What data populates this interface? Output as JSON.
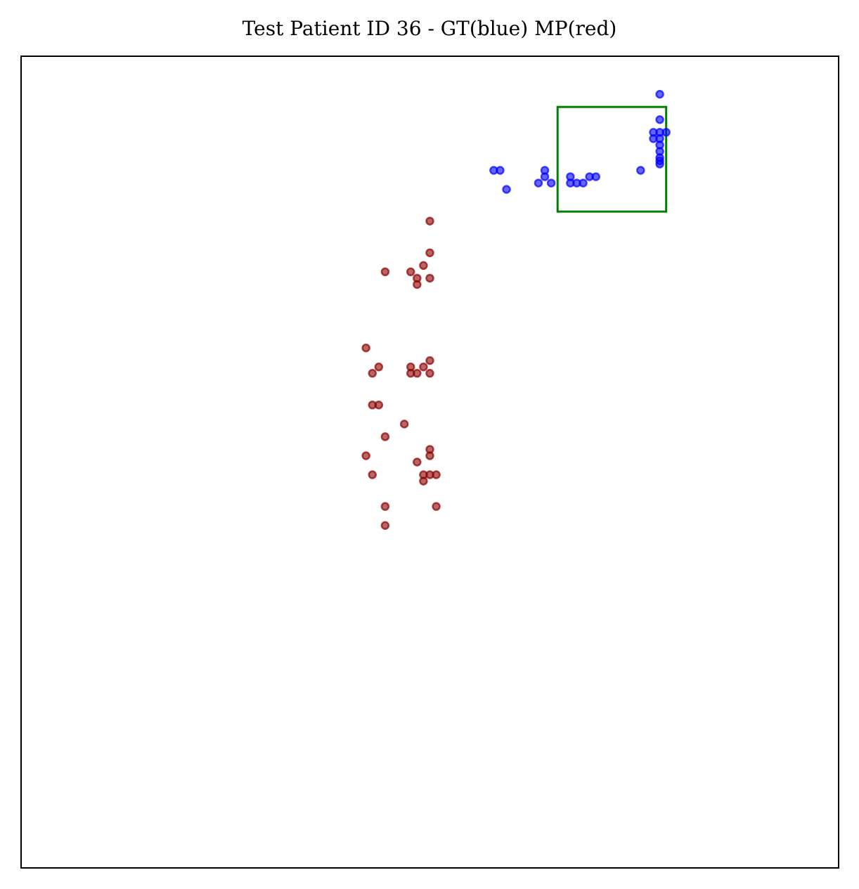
{
  "chart_data": {
    "type": "scatter",
    "title": "Test Patient ID 36 - GT(blue) MP(red)",
    "xlabel": "",
    "ylabel": "",
    "xlim": [
      0,
      128
    ],
    "ylim": [
      128,
      0
    ],
    "grid": false,
    "axis_ticks": false,
    "series": [
      {
        "color": "#0000ff",
        "points": [
          [
            100,
            6
          ],
          [
            100,
            10
          ],
          [
            99,
            12
          ],
          [
            101,
            12
          ],
          [
            100,
            12
          ],
          [
            99,
            13
          ],
          [
            100,
            13
          ],
          [
            100,
            14
          ],
          [
            100,
            15
          ],
          [
            100,
            16
          ],
          [
            100,
            16.5
          ],
          [
            100,
            17
          ],
          [
            74,
            18
          ],
          [
            75,
            18
          ],
          [
            82,
            18
          ],
          [
            82,
            19
          ],
          [
            97,
            18
          ],
          [
            89,
            19
          ],
          [
            90,
            19
          ],
          [
            86,
            19
          ],
          [
            86,
            20
          ],
          [
            87,
            20
          ],
          [
            88,
            20
          ],
          [
            81,
            20
          ],
          [
            83,
            20
          ],
          [
            76,
            21
          ]
        ]
      },
      {
        "color": "#8b0000",
        "points": [
          [
            64,
            26
          ],
          [
            64,
            31
          ],
          [
            63,
            33
          ],
          [
            57,
            34
          ],
          [
            61,
            34
          ],
          [
            62,
            35
          ],
          [
            64,
            35
          ],
          [
            62,
            36
          ],
          [
            54,
            46
          ],
          [
            64,
            48
          ],
          [
            56,
            49
          ],
          [
            61,
            49
          ],
          [
            63,
            49
          ],
          [
            55,
            50
          ],
          [
            61,
            50
          ],
          [
            62,
            50
          ],
          [
            64,
            50
          ],
          [
            55,
            55
          ],
          [
            56,
            55
          ],
          [
            60,
            58
          ],
          [
            57,
            60
          ],
          [
            64,
            62
          ],
          [
            54,
            63
          ],
          [
            64,
            63
          ],
          [
            62,
            64
          ],
          [
            55,
            66
          ],
          [
            63,
            66
          ],
          [
            64,
            66
          ],
          [
            65,
            66
          ],
          [
            63,
            67
          ],
          [
            57,
            71
          ],
          [
            65,
            71
          ],
          [
            57,
            74
          ]
        ]
      }
    ],
    "rectangle": {
      "color": "#008000",
      "x": [
        84,
        101
      ],
      "y": [
        8,
        24.5
      ]
    }
  }
}
